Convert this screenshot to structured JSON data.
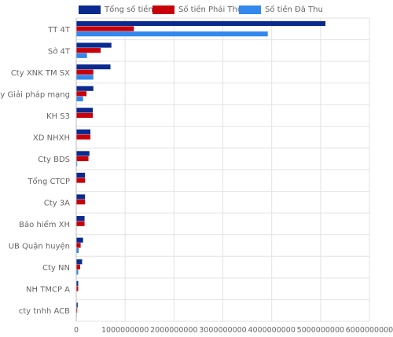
{
  "chart_data": {
    "type": "bar",
    "orientation": "horizontal",
    "categories": [
      "TT 4T",
      "Sở 4T",
      "Cty XNK TM SX",
      "Cty Giải pháp mạng",
      "KH S3",
      "XD NHXH",
      "Cty BDS",
      "Tổng CTCP",
      "Cty 3A",
      "Bảo hiểm XH",
      "UB Quận huyện",
      "Cty NN",
      "NH TMCP A",
      "cty tnhh ACB"
    ],
    "series": [
      {
        "name": "Tổng số tiền",
        "color": "#0a2a8f",
        "values": [
          5100000000,
          720000000,
          700000000,
          350000000,
          340000000,
          290000000,
          270000000,
          180000000,
          180000000,
          170000000,
          140000000,
          120000000,
          40000000,
          30000000
        ]
      },
      {
        "name": "Số tiền Phải Thu",
        "color": "#c8000a",
        "values": [
          1180000000,
          500000000,
          350000000,
          210000000,
          340000000,
          290000000,
          250000000,
          180000000,
          180000000,
          170000000,
          90000000,
          80000000,
          40000000,
          20000000
        ]
      },
      {
        "name": "Số tiền Đã Thu",
        "color": "#3388ee",
        "values": [
          3920000000,
          220000000,
          350000000,
          140000000,
          0,
          0,
          20000000,
          0,
          0,
          0,
          50000000,
          40000000,
          0,
          10000000
        ]
      }
    ],
    "x_ticks": [
      0,
      1000000000,
      2000000000,
      3000000000,
      4000000000,
      5000000000,
      6000000000
    ],
    "x_tick_labels": [
      "0",
      "1000000000",
      "2000000000",
      "3000000000",
      "4000000000",
      "5000000000",
      "6000000000"
    ],
    "xlim": [
      0,
      6000000000
    ],
    "grid": true,
    "legend_position": "top"
  }
}
